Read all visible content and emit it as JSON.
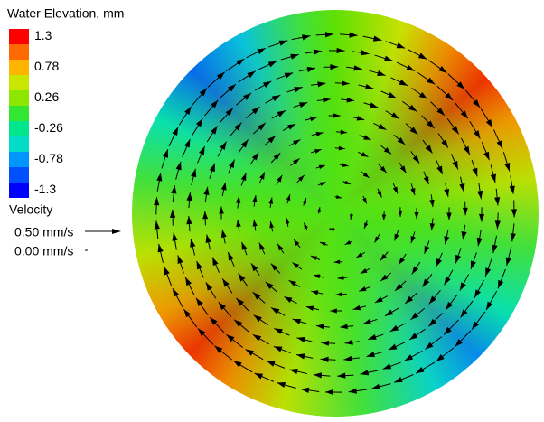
{
  "legend": {
    "title": "Water Elevation, mm",
    "colors": [
      "#ff0000",
      "#ff6a00",
      "#ffb400",
      "#c8e600",
      "#8ce600",
      "#32e632",
      "#00e68c",
      "#00dcc8",
      "#0096ff",
      "#0050ff",
      "#0000ff"
    ],
    "labels": [
      "1.3",
      "0.78",
      "0.26",
      "-0.26",
      "-0.78",
      "-1.3"
    ],
    "velocity_title": "Velocity",
    "velocity_labels": [
      "0.50 mm/s",
      "0.00 mm/s"
    ]
  }
}
